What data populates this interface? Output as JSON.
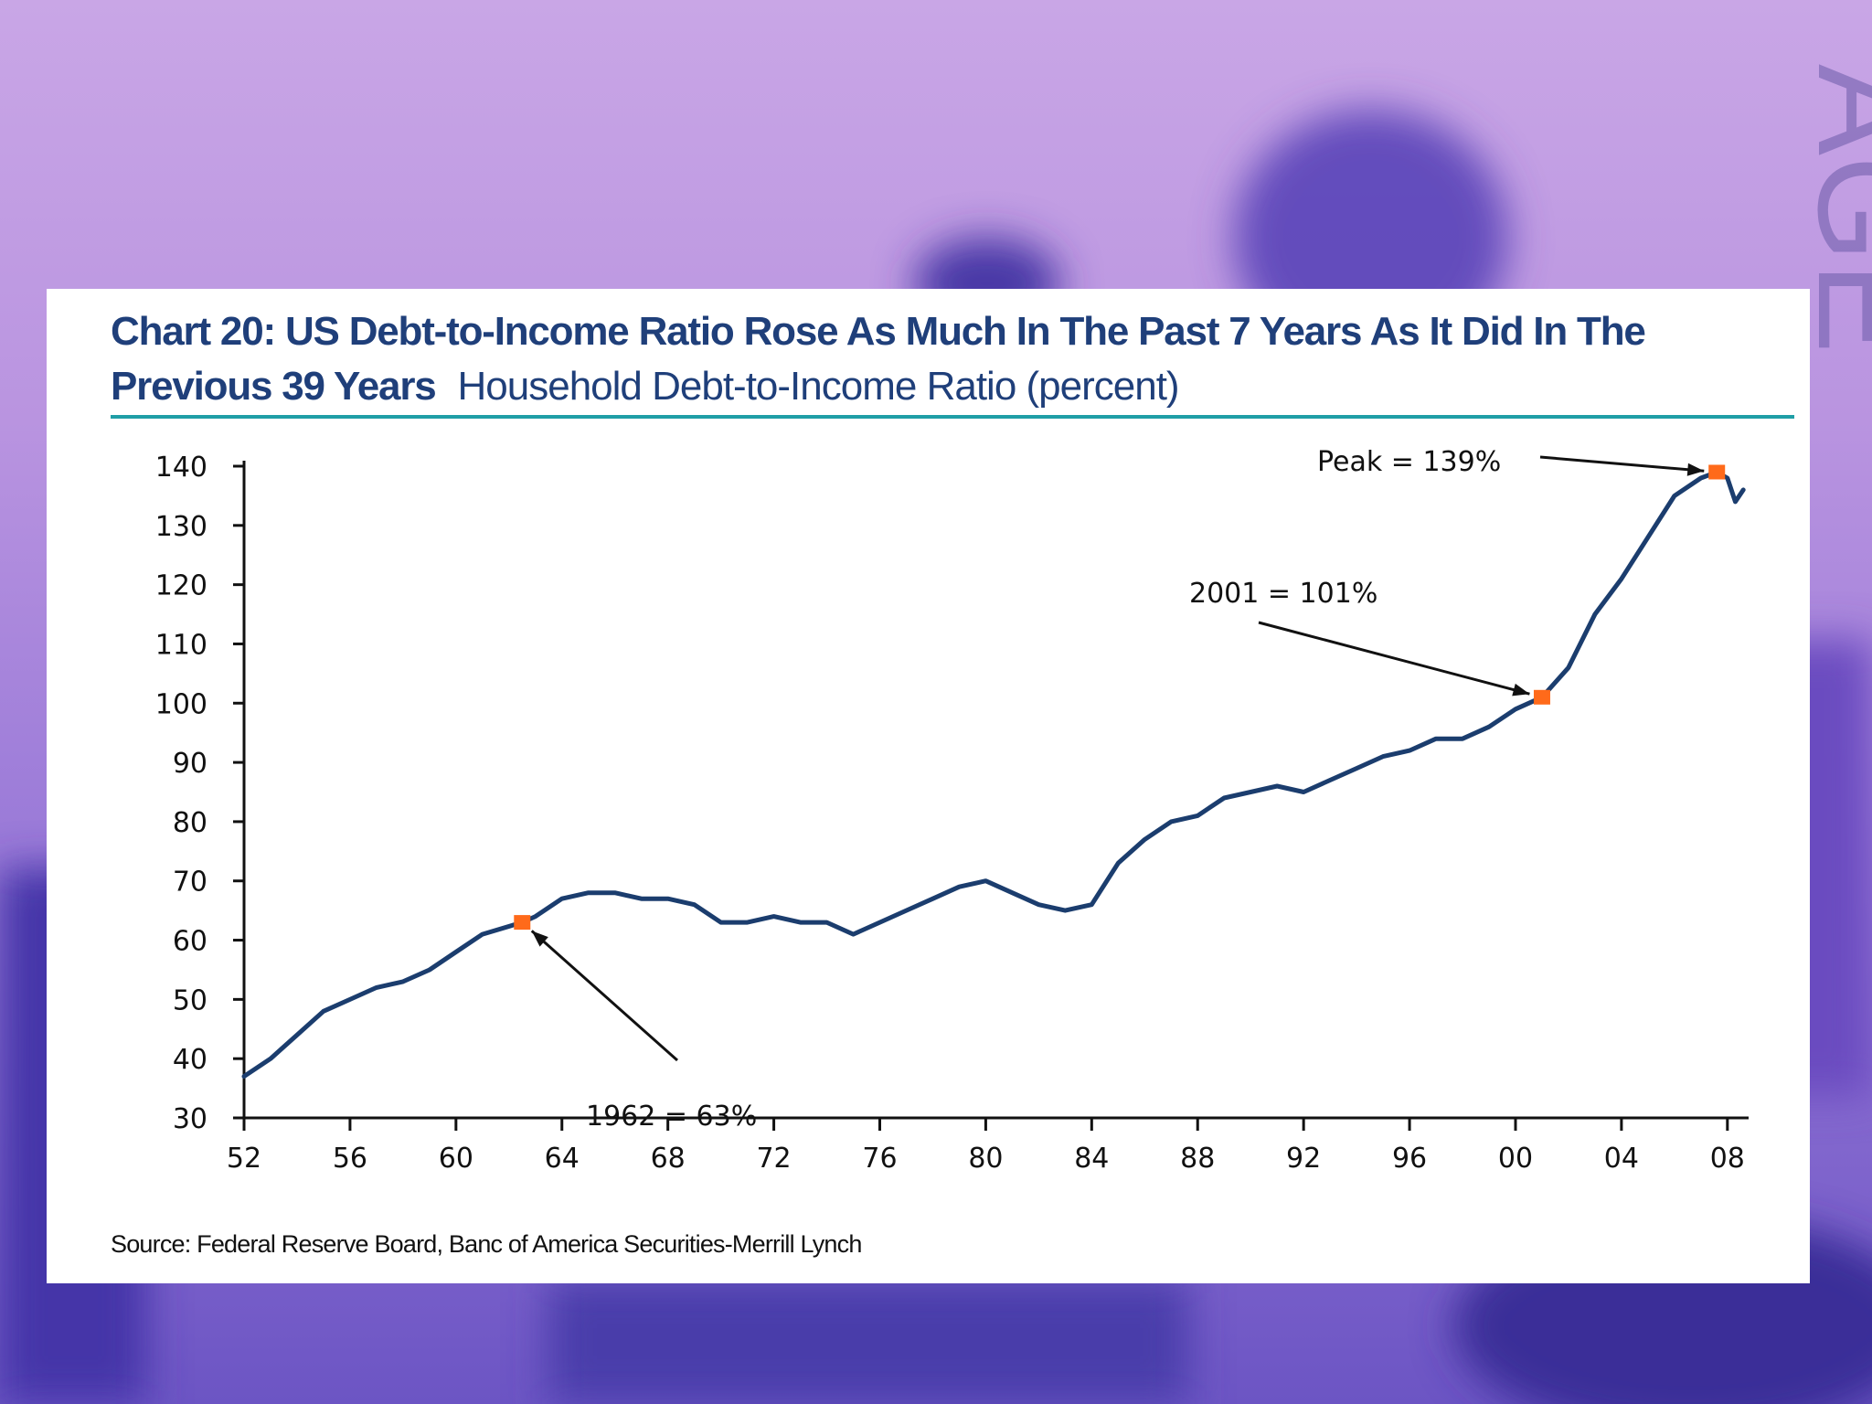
{
  "colors": {
    "title": "#1f3f7a",
    "rule": "#1f9ea6",
    "line": "#1b3d6e",
    "marker": "#ff6a1a",
    "panel": "#ffffff"
  },
  "chart_data": {
    "type": "line",
    "title": "Chart 20: US Debt-to-Income Ratio Rose As Much In The Past 7 Years As It Did In The",
    "title_line2": "Previous 39 Years",
    "subtitle": "Household Debt-to-Income Ratio (percent)",
    "source": "Source: Federal Reserve Board, Banc of America Securities-Merrill Lynch",
    "xlabel": "",
    "ylabel": "",
    "xlim": [
      1952,
      2008.8
    ],
    "ylim": [
      30,
      140
    ],
    "grid": false,
    "x_ticks": [
      1952,
      1956,
      1960,
      1964,
      1968,
      1972,
      1976,
      1980,
      1984,
      1988,
      1992,
      1996,
      2000,
      2004,
      2008
    ],
    "x_tick_labels": [
      "52",
      "56",
      "60",
      "64",
      "68",
      "72",
      "76",
      "80",
      "84",
      "88",
      "92",
      "96",
      "00",
      "04",
      "08"
    ],
    "y_ticks": [
      30,
      40,
      50,
      60,
      70,
      80,
      90,
      100,
      110,
      120,
      130,
      140
    ],
    "y_tick_labels": [
      "30",
      "40",
      "50",
      "60",
      "70",
      "80",
      "90",
      "100",
      "110",
      "120",
      "130",
      "140"
    ],
    "series": [
      {
        "x": [
          1952,
          1953,
          1954,
          1955,
          1956,
          1957,
          1958,
          1959,
          1960,
          1961,
          1962.5,
          1963,
          1964,
          1965,
          1966,
          1967,
          1968,
          1969,
          1970,
          1971,
          1972,
          1973,
          1974,
          1975,
          1976,
          1977,
          1978,
          1979,
          1980,
          1981,
          1982,
          1983,
          1984,
          1985,
          1986,
          1987,
          1988,
          1989,
          1990,
          1991,
          1992,
          1993,
          1994,
          1995,
          1996,
          1997,
          1998,
          1999,
          2000,
          2001,
          2002,
          2003,
          2004,
          2005,
          2006,
          2007,
          2007.6,
          2008,
          2008.3,
          2008.6
        ],
        "values": [
          37,
          40,
          44,
          48,
          50,
          52,
          53,
          55,
          58,
          61,
          63,
          64,
          67,
          68,
          68,
          67,
          67,
          66,
          63,
          63,
          64,
          63,
          63,
          61,
          63,
          65,
          67,
          69,
          70,
          68,
          66,
          65,
          66,
          73,
          77,
          80,
          81,
          84,
          85,
          86,
          85,
          87,
          89,
          91,
          92,
          94,
          94,
          96,
          99,
          101,
          106,
          115,
          121,
          128,
          135,
          138,
          139,
          138,
          134,
          136
        ]
      }
    ],
    "annotations": [
      {
        "text": "1962 = 63%",
        "x": 1962.5,
        "y": 63
      },
      {
        "text": "2001 = 101%",
        "x": 2001,
        "y": 101
      },
      {
        "text": "Peak = 139%",
        "x": 2007.6,
        "y": 139
      }
    ]
  }
}
